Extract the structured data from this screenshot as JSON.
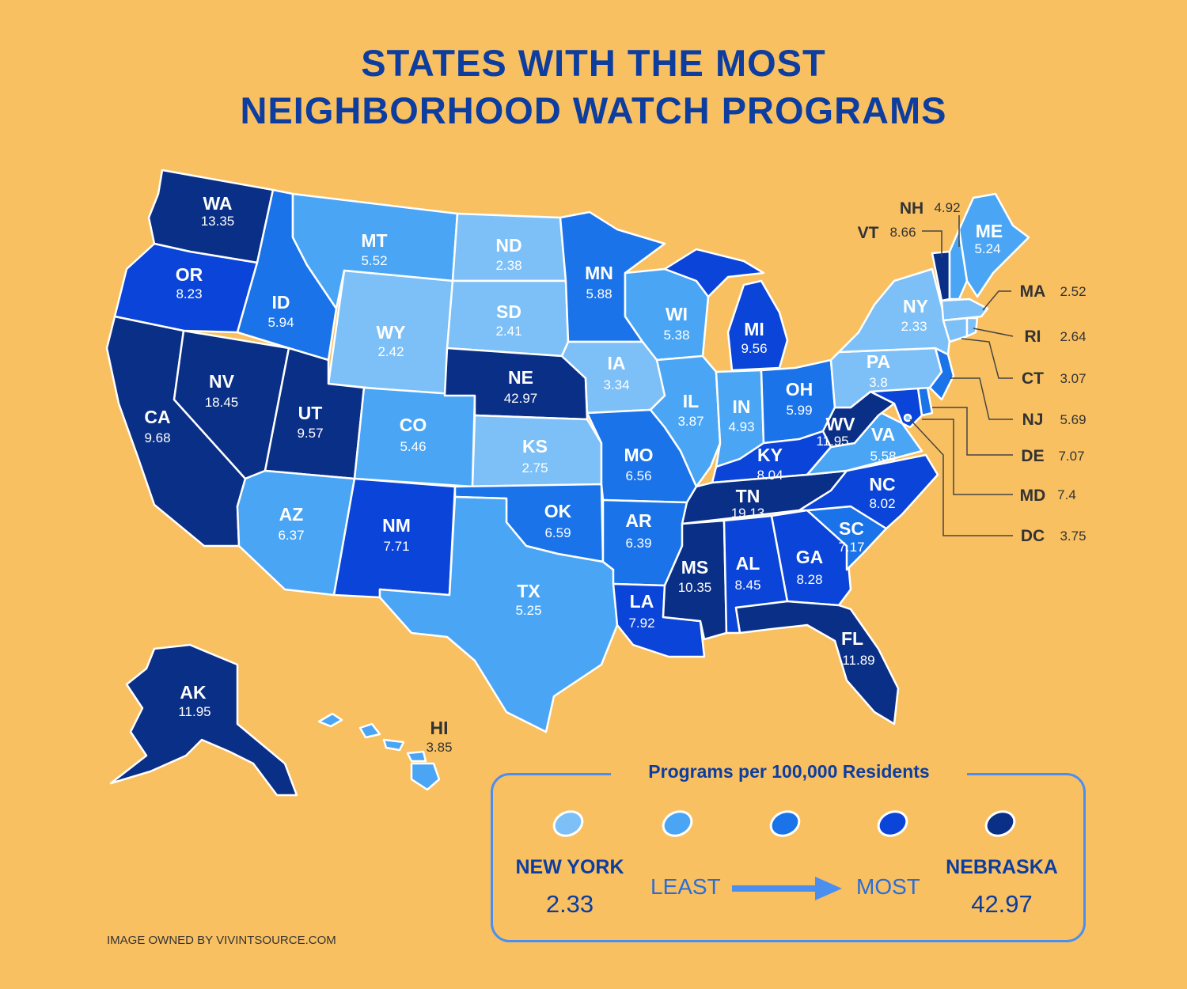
{
  "title_line1": "STATES WITH THE MOST",
  "title_line2": "NEIGHBORHOOD WATCH PROGRAMS",
  "colors": {
    "background": "#f9c062",
    "title": "#0d3d9e",
    "class1": "#7dc0f7",
    "class2": "#4aa6f5",
    "class3": "#1a73e8",
    "class4": "#0a44d8",
    "class5": "#0a2f86"
  },
  "states": [
    {
      "abbr": "WA",
      "value": "13.35"
    },
    {
      "abbr": "OR",
      "value": "8.23"
    },
    {
      "abbr": "CA",
      "value": "9.68"
    },
    {
      "abbr": "NV",
      "value": "18.45"
    },
    {
      "abbr": "ID",
      "value": "5.94"
    },
    {
      "abbr": "MT",
      "value": "5.52"
    },
    {
      "abbr": "WY",
      "value": "2.42"
    },
    {
      "abbr": "UT",
      "value": "9.57"
    },
    {
      "abbr": "AZ",
      "value": "6.37"
    },
    {
      "abbr": "CO",
      "value": "5.46"
    },
    {
      "abbr": "NM",
      "value": "7.71"
    },
    {
      "abbr": "ND",
      "value": "2.38"
    },
    {
      "abbr": "SD",
      "value": "2.41"
    },
    {
      "abbr": "NE",
      "value": "42.97"
    },
    {
      "abbr": "KS",
      "value": "2.75"
    },
    {
      "abbr": "OK",
      "value": "6.59"
    },
    {
      "abbr": "TX",
      "value": "5.25"
    },
    {
      "abbr": "MN",
      "value": "5.88"
    },
    {
      "abbr": "IA",
      "value": "3.34"
    },
    {
      "abbr": "MO",
      "value": "6.56"
    },
    {
      "abbr": "AR",
      "value": "6.39"
    },
    {
      "abbr": "LA",
      "value": "7.92"
    },
    {
      "abbr": "WI",
      "value": "5.38"
    },
    {
      "abbr": "IL",
      "value": "3.87"
    },
    {
      "abbr": "MI",
      "value": "9.56"
    },
    {
      "abbr": "IN",
      "value": "4.93"
    },
    {
      "abbr": "OH",
      "value": "5.99"
    },
    {
      "abbr": "KY",
      "value": "8.04"
    },
    {
      "abbr": "TN",
      "value": "19.13"
    },
    {
      "abbr": "MS",
      "value": "10.35"
    },
    {
      "abbr": "AL",
      "value": "8.45"
    },
    {
      "abbr": "GA",
      "value": "8.28"
    },
    {
      "abbr": "FL",
      "value": "11.89"
    },
    {
      "abbr": "SC",
      "value": "7.17"
    },
    {
      "abbr": "NC",
      "value": "8.02"
    },
    {
      "abbr": "VA",
      "value": "5.58"
    },
    {
      "abbr": "WV",
      "value": "11.95"
    },
    {
      "abbr": "PA",
      "value": "3.8"
    },
    {
      "abbr": "NY",
      "value": "2.33"
    },
    {
      "abbr": "ME",
      "value": "5.24"
    },
    {
      "abbr": "AK",
      "value": "11.95"
    },
    {
      "abbr": "HI",
      "value": "3.85"
    }
  ],
  "callouts": [
    {
      "abbr": "NH",
      "value": "4.92"
    },
    {
      "abbr": "VT",
      "value": "8.66"
    },
    {
      "abbr": "MA",
      "value": "2.52"
    },
    {
      "abbr": "RI",
      "value": "2.64"
    },
    {
      "abbr": "CT",
      "value": "3.07"
    },
    {
      "abbr": "NJ",
      "value": "5.69"
    },
    {
      "abbr": "DE",
      "value": "7.07"
    },
    {
      "abbr": "MD",
      "value": "7.4"
    },
    {
      "abbr": "DC",
      "value": "3.75"
    }
  ],
  "legend": {
    "title": "Programs per 100,000 Residents",
    "least_state": "NEW YORK",
    "least_value": "2.33",
    "most_state": "NEBRASKA",
    "most_value": "42.97",
    "least_label": "LEAST",
    "most_label": "MOST"
  },
  "credit": "IMAGE OWNED BY VIVINTSOURCE.COM"
}
